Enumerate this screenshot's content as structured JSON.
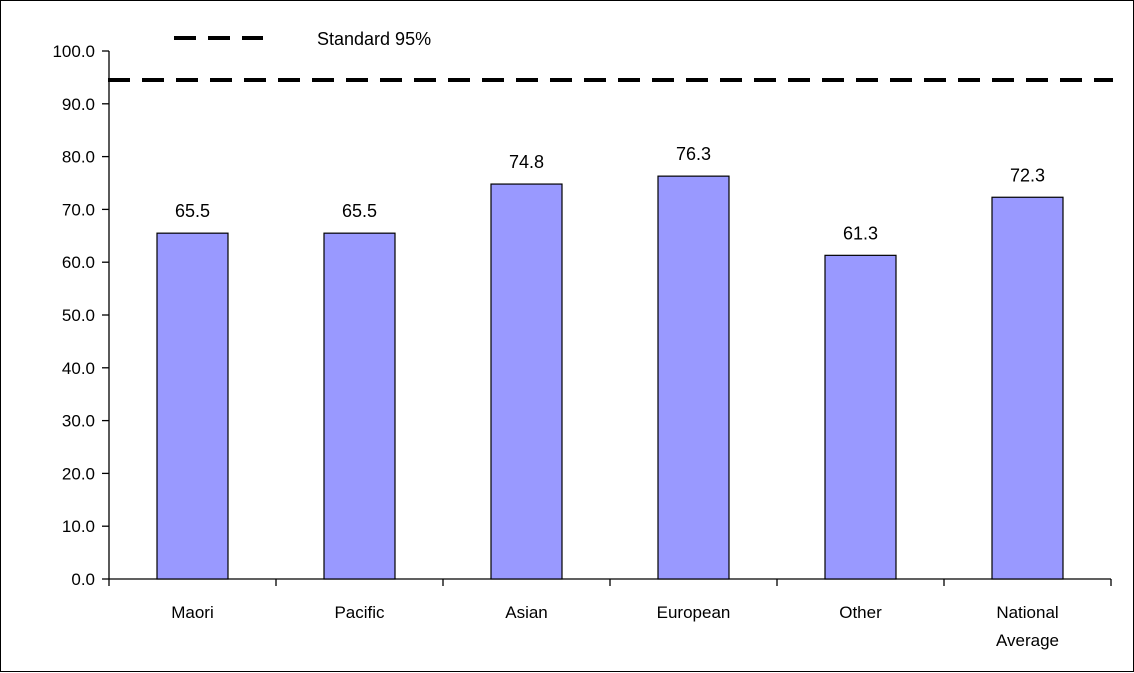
{
  "chart_data": {
    "type": "bar",
    "categories": [
      "Maori",
      "Pacific",
      "Asian",
      "European",
      "Other",
      "National Average"
    ],
    "category_lines": [
      [
        "Maori"
      ],
      [
        "Pacific"
      ],
      [
        "Asian"
      ],
      [
        "European"
      ],
      [
        "Other"
      ],
      [
        "National",
        "Average"
      ]
    ],
    "values": [
      65.5,
      65.5,
      74.8,
      76.3,
      61.3,
      72.3
    ],
    "data_labels": [
      "65.5",
      "65.5",
      "74.8",
      "76.3",
      "61.3",
      "72.3"
    ],
    "ylim": [
      0,
      100
    ],
    "yticks": [
      0,
      10,
      20,
      30,
      40,
      50,
      60,
      70,
      80,
      90,
      100
    ],
    "ytick_labels": [
      "0.0",
      "10.0",
      "20.0",
      "30.0",
      "40.0",
      "50.0",
      "60.0",
      "70.0",
      "80.0",
      "90.0",
      "100.0"
    ],
    "reference_line": {
      "name": "Standard 95%",
      "value": 94.5,
      "style": "dashed"
    },
    "legend": {
      "label": "Standard 95%",
      "position": "top"
    },
    "grid": false,
    "bar_color": "#9999ff",
    "bar_edge_color": "#000000",
    "title": "",
    "xlabel": "",
    "ylabel": ""
  }
}
